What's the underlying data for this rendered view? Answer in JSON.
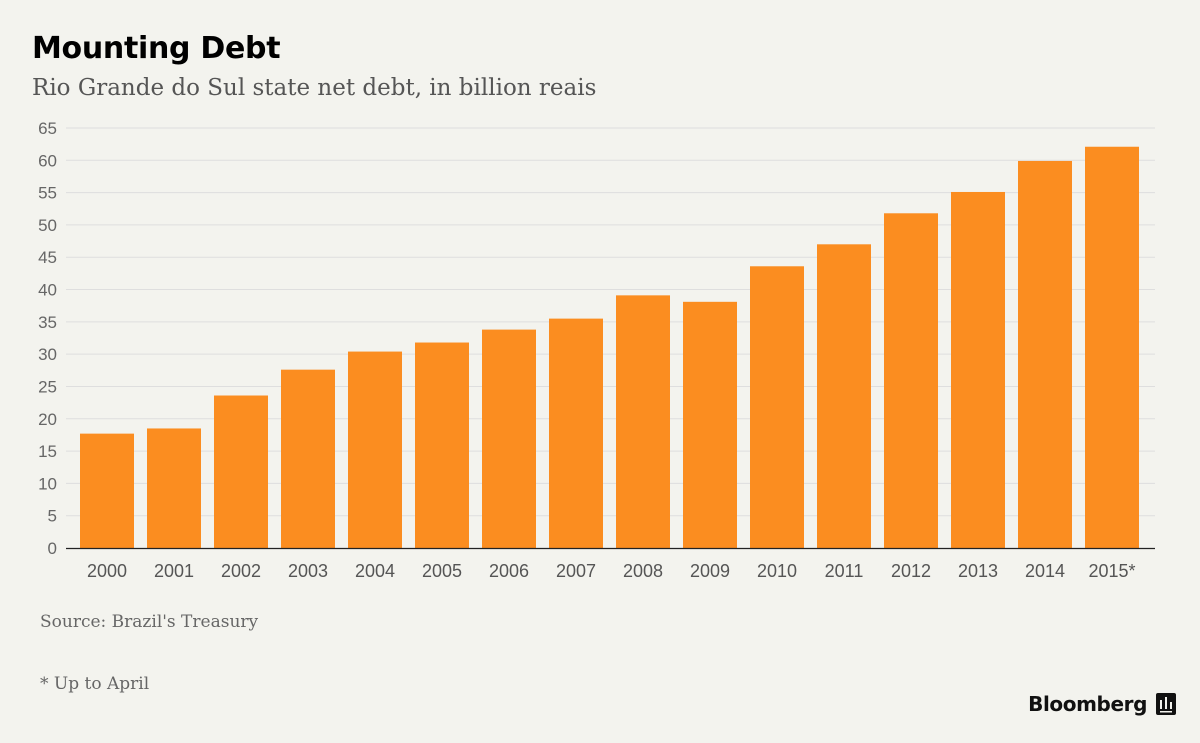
{
  "chart_data": {
    "type": "bar",
    "title": "Mounting Debt",
    "subtitle": "Rio Grande do Sul state net debt, in billion reais",
    "categories": [
      "2000",
      "2001",
      "2002",
      "2003",
      "2004",
      "2005",
      "2006",
      "2007",
      "2008",
      "2009",
      "2010",
      "2011",
      "2012",
      "2013",
      "2014",
      "2015*"
    ],
    "values": [
      17.7,
      18.5,
      23.6,
      27.6,
      30.4,
      31.8,
      33.8,
      35.5,
      39.1,
      38.1,
      43.6,
      47.0,
      51.8,
      55.1,
      59.9,
      62.1
    ],
    "ylim": [
      0,
      65
    ],
    "yticks": [
      0,
      5,
      10,
      15,
      20,
      25,
      30,
      35,
      40,
      45,
      50,
      55,
      60,
      65
    ],
    "grid": true,
    "bar_color": "#fb8d20"
  },
  "source": "Source: Brazil's Treasury",
  "footnote": "* Up to April",
  "brand": {
    "name": "Bloomberg",
    "icon": "bloomberg-chart-icon"
  }
}
